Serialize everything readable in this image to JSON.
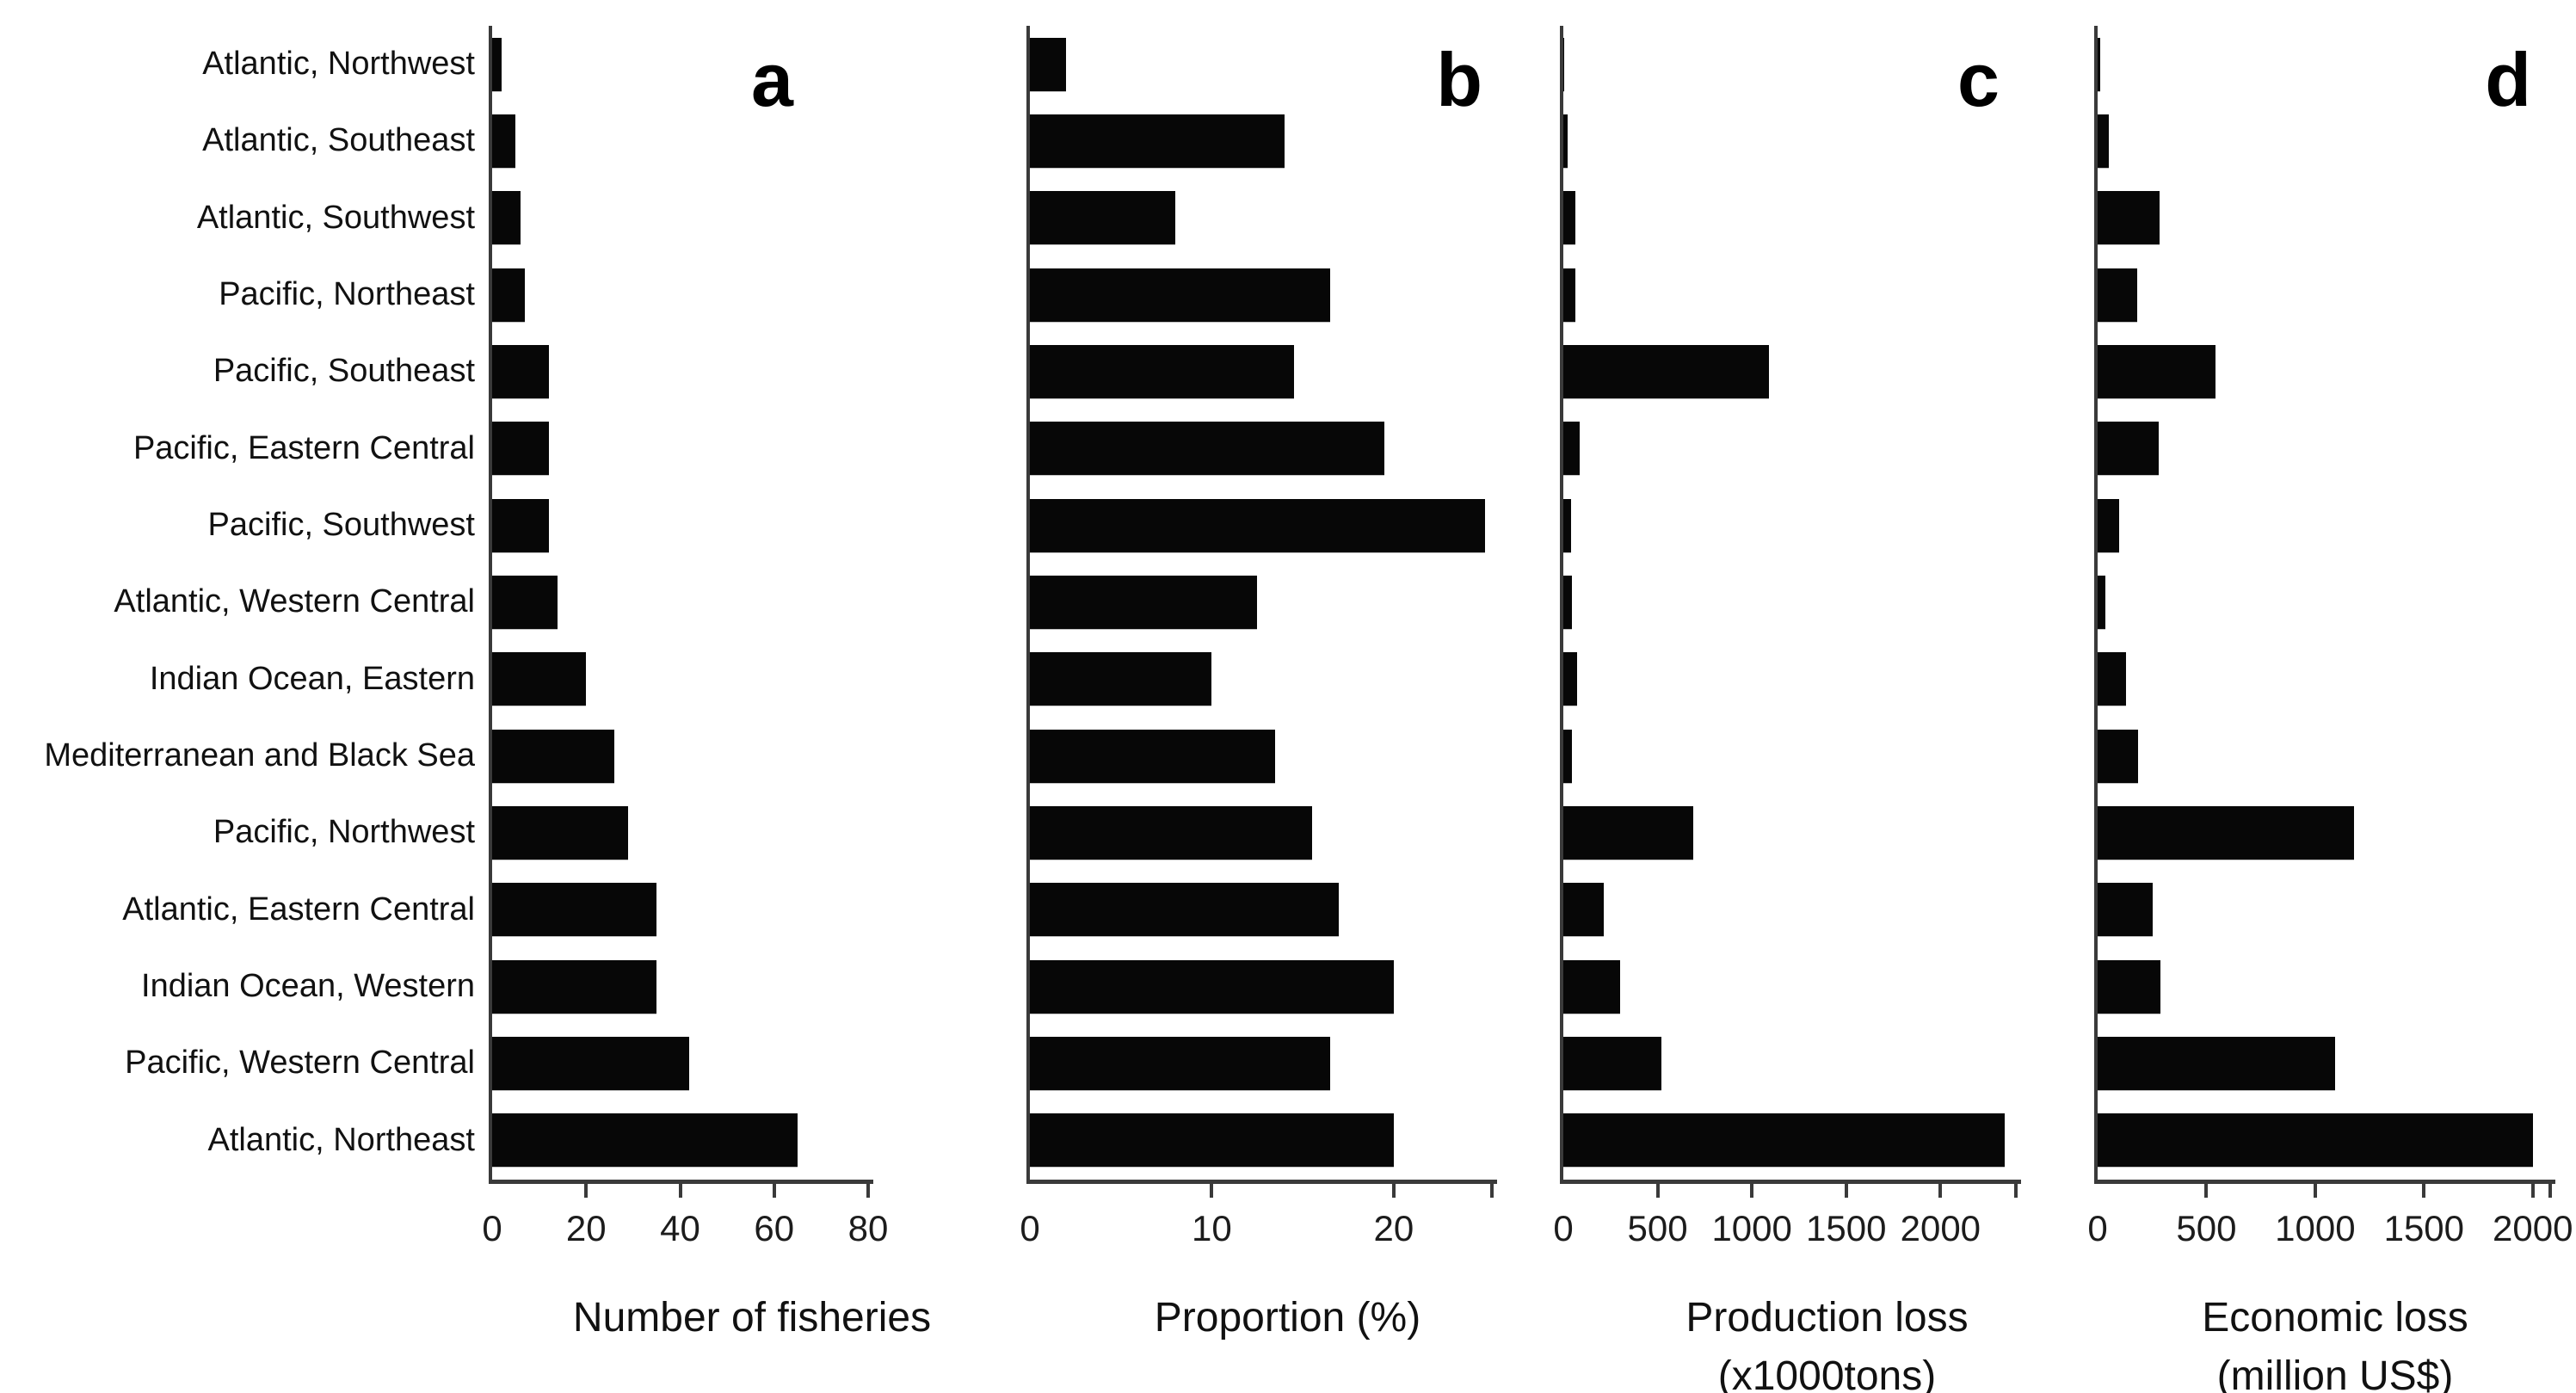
{
  "figure_title": "",
  "colors": {
    "bar": "#070707",
    "axis": "#3a3a3a",
    "text": "#111111",
    "background": "#ffffff"
  },
  "categories": [
    "Atlantic, Northwest",
    "Atlantic, Southeast",
    "Atlantic, Southwest",
    "Pacific, Northeast",
    "Pacific, Southeast",
    "Pacific, Eastern Central",
    "Pacific, Southwest",
    "Atlantic, Western Central",
    "Indian Ocean, Eastern",
    "Mediterranean and Black Sea",
    "Pacific, Northwest",
    "Atlantic, Eastern Central",
    "Indian Ocean, Western",
    "Pacific, Western Central",
    "Atlantic, Northeast"
  ],
  "chart_data": [
    {
      "type": "bar",
      "orientation": "horizontal",
      "panel_letter": "a",
      "xlabel_lines": [
        "Number of fisheries"
      ],
      "xticks": [
        0,
        20,
        40,
        60,
        80
      ],
      "xlim": [
        0,
        80
      ],
      "grid": false,
      "legend": "none",
      "categories": [
        "Atlantic, Northwest",
        "Atlantic, Southeast",
        "Atlantic, Southwest",
        "Pacific, Northeast",
        "Pacific, Southeast",
        "Pacific, Eastern Central",
        "Pacific, Southwest",
        "Atlantic, Western Central",
        "Indian Ocean, Eastern",
        "Mediterranean and Black Sea",
        "Pacific, Northwest",
        "Atlantic, Eastern Central",
        "Indian Ocean, Western",
        "Pacific, Western Central",
        "Atlantic, Northeast"
      ],
      "values": [
        2,
        5,
        6,
        7,
        12,
        12,
        12,
        14,
        20,
        26,
        29,
        35,
        35,
        42,
        65
      ]
    },
    {
      "type": "bar",
      "orientation": "horizontal",
      "panel_letter": "b",
      "xlabel_lines": [
        "Proportion (%)"
      ],
      "xticks": [
        0,
        10,
        20
      ],
      "xlim": [
        0,
        25.4
      ],
      "grid": false,
      "legend": "none",
      "categories": [
        "Atlantic, Northwest",
        "Atlantic, Southeast",
        "Atlantic, Southwest",
        "Pacific, Northeast",
        "Pacific, Southeast",
        "Pacific, Eastern Central",
        "Pacific, Southwest",
        "Atlantic, Western Central",
        "Indian Ocean, Eastern",
        "Mediterranean and Black Sea",
        "Pacific, Northwest",
        "Atlantic, Eastern Central",
        "Indian Ocean, Western",
        "Pacific, Western Central",
        "Atlantic, Northeast"
      ],
      "values": [
        2,
        14,
        8,
        16.5,
        14.5,
        19.5,
        25,
        12.5,
        10,
        13.5,
        15.5,
        17,
        20,
        16.5,
        20
      ]
    },
    {
      "type": "bar",
      "orientation": "horizontal",
      "panel_letter": "c",
      "xlabel_lines": [
        "Production loss",
        "(x1000tons)"
      ],
      "xticks": [
        0,
        500,
        1000,
        1500,
        2000
      ],
      "xlim": [
        0,
        2400
      ],
      "grid": false,
      "legend": "none",
      "categories": [
        "Atlantic, Northwest",
        "Atlantic, Southeast",
        "Atlantic, Southwest",
        "Pacific, Northeast",
        "Pacific, Southeast",
        "Pacific, Eastern Central",
        "Pacific, Southwest",
        "Atlantic, Western Central",
        "Indian Ocean, Eastern",
        "Mediterranean and Black Sea",
        "Pacific, Northwest",
        "Atlantic, Eastern Central",
        "Indian Ocean, Western",
        "Pacific, Western Central",
        "Atlantic, Northeast"
      ],
      "values": [
        5,
        25,
        65,
        65,
        1090,
        85,
        40,
        45,
        75,
        45,
        690,
        215,
        300,
        520,
        2340
      ]
    },
    {
      "type": "bar",
      "orientation": "horizontal",
      "panel_letter": "d",
      "xlabel_lines": [
        "Economic loss",
        "(million US$)"
      ],
      "xticks": [
        0,
        500,
        1000,
        1500,
        2000
      ],
      "xlim": [
        0,
        2080
      ],
      "grid": false,
      "legend": "none",
      "categories": [
        "Atlantic, Northwest",
        "Atlantic, Southeast",
        "Atlantic, Southwest",
        "Pacific, Northeast",
        "Pacific, Southeast",
        "Pacific, Eastern Central",
        "Pacific, Southwest",
        "Atlantic, Western Central",
        "Indian Ocean, Eastern",
        "Mediterranean and Black Sea",
        "Pacific, Northwest",
        "Atlantic, Eastern Central",
        "Indian Ocean, Western",
        "Pacific, Western Central",
        "Atlantic, Northeast"
      ],
      "values": [
        10,
        50,
        285,
        180,
        540,
        280,
        100,
        35,
        130,
        185,
        1180,
        255,
        290,
        1090,
        2000
      ]
    }
  ]
}
